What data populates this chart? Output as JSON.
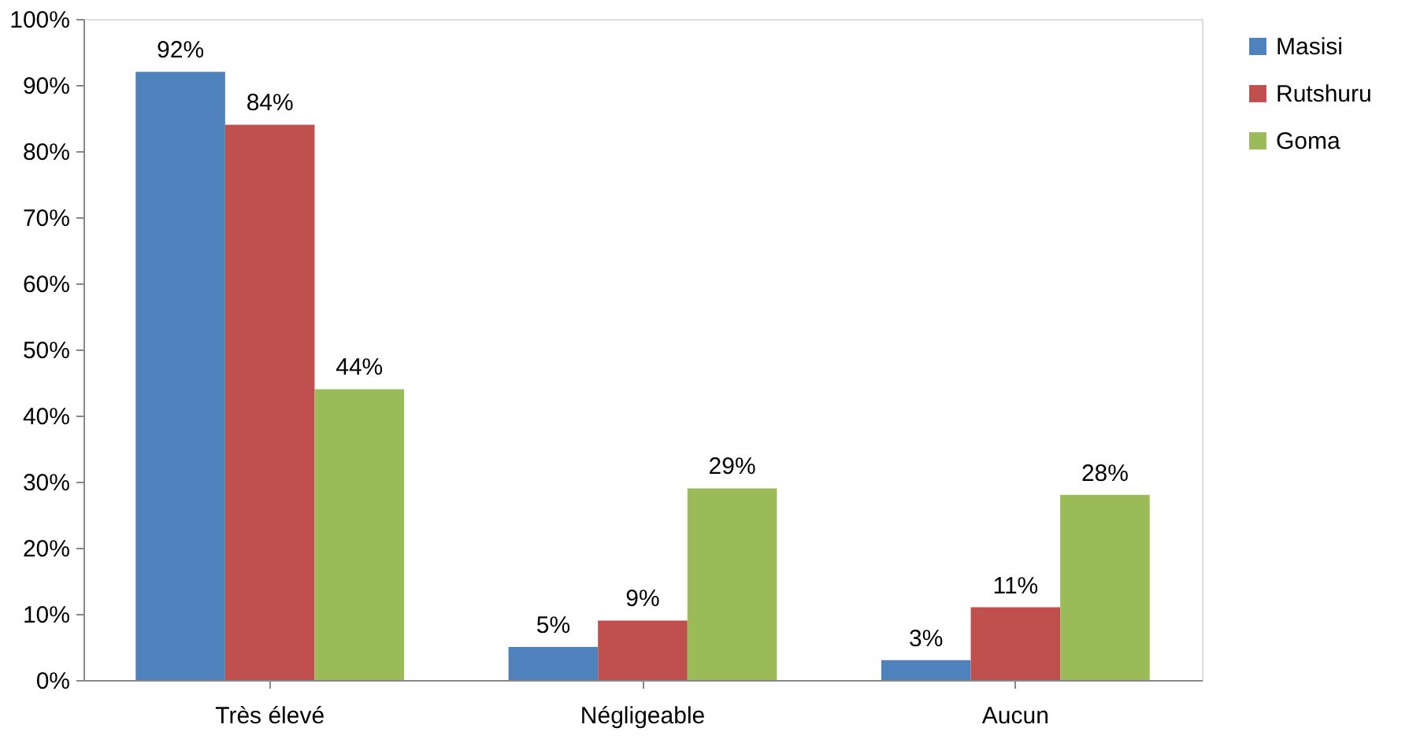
{
  "chart_data": {
    "type": "bar",
    "categories": [
      "Très élevé",
      "Négligeable",
      "Aucun"
    ],
    "series": [
      {
        "name": "Masisi",
        "color": "#4f81bd",
        "values": [
          92,
          5,
          3
        ],
        "value_labels": [
          "92%",
          "5%",
          "3%"
        ]
      },
      {
        "name": "Rutshuru",
        "color": "#c0504d",
        "values": [
          84,
          9,
          11
        ],
        "value_labels": [
          "84%",
          "9%",
          "11%"
        ]
      },
      {
        "name": "Goma",
        "color": "#9bbb59",
        "values": [
          44,
          29,
          28
        ],
        "value_labels": [
          "44%",
          "29%",
          "28%"
        ]
      }
    ],
    "ylim": [
      0,
      100
    ],
    "yticks": [
      {
        "value": 0,
        "label": "0%"
      },
      {
        "value": 10,
        "label": "10%"
      },
      {
        "value": 20,
        "label": "20%"
      },
      {
        "value": 30,
        "label": "30%"
      },
      {
        "value": 40,
        "label": "40%"
      },
      {
        "value": 50,
        "label": "50%"
      },
      {
        "value": 60,
        "label": "60%"
      },
      {
        "value": 70,
        "label": "70%"
      },
      {
        "value": 80,
        "label": "80%"
      },
      {
        "value": 90,
        "label": "90%"
      },
      {
        "value": 100,
        "label": "100%"
      }
    ],
    "grid": false,
    "legend": "right"
  }
}
